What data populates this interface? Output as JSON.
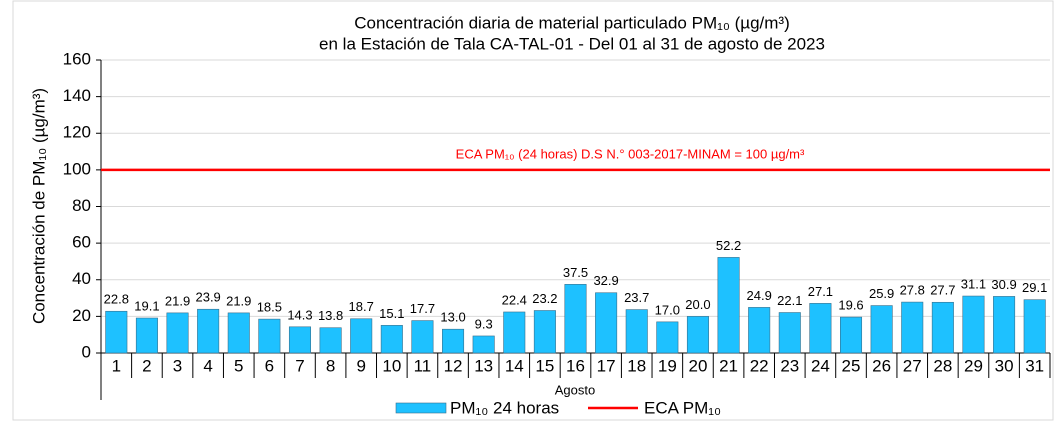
{
  "chart_data": {
    "type": "bar",
    "title": [
      "Concentración diaria de material particulado PM₁₀ (µg/m³)",
      "en la Estación de Tala CA-TAL-01 - Del 01 al 31 de agosto de 2023"
    ],
    "x_label": "Agosto",
    "y_label": "Concentración de PM₁₀ (µg/m³)",
    "categories": [
      "1",
      "2",
      "3",
      "4",
      "5",
      "6",
      "7",
      "8",
      "9",
      "10",
      "11",
      "12",
      "13",
      "14",
      "15",
      "16",
      "17",
      "18",
      "19",
      "20",
      "21",
      "22",
      "23",
      "24",
      "25",
      "26",
      "27",
      "28",
      "29",
      "30",
      "31"
    ],
    "series": [
      {
        "name": "PM₁₀ 24 horas",
        "color": "#1ec1ff",
        "values": [
          22.8,
          19.1,
          21.9,
          23.9,
          21.9,
          18.5,
          14.3,
          13.8,
          18.7,
          15.1,
          17.7,
          13.0,
          9.3,
          22.4,
          23.2,
          37.5,
          32.9,
          23.7,
          17.0,
          20.0,
          52.2,
          24.9,
          22.1,
          27.1,
          19.6,
          25.9,
          27.8,
          27.7,
          31.1,
          30.9,
          29.1
        ],
        "value_labels": [
          "22.8",
          "19.1",
          "21.9",
          "23.9",
          "21.9",
          "18.5",
          "14.3",
          "13.8",
          "18.7",
          "15.1",
          "17.7",
          "13.0",
          "9.3",
          "22.4",
          "23.2",
          "37.5",
          "32.9",
          "23.7",
          "17.0",
          "20.0",
          "52.2",
          "24.9",
          "22.1",
          "27.1",
          "19.6",
          "25.9",
          "27.8",
          "27.7",
          "31.1",
          "30.9",
          "29.1"
        ]
      }
    ],
    "reference_line": {
      "name": "ECA PM₁₀",
      "value": 100,
      "color": "#ff0000",
      "label": "ECA PM₁₀ (24 horas) D.S N.° 003-2017-MINAM = 100 µg/m³"
    },
    "ylim": [
      0,
      160
    ],
    "yticks": [
      0,
      20,
      40,
      60,
      80,
      100,
      120,
      140,
      160
    ],
    "grid": true
  }
}
